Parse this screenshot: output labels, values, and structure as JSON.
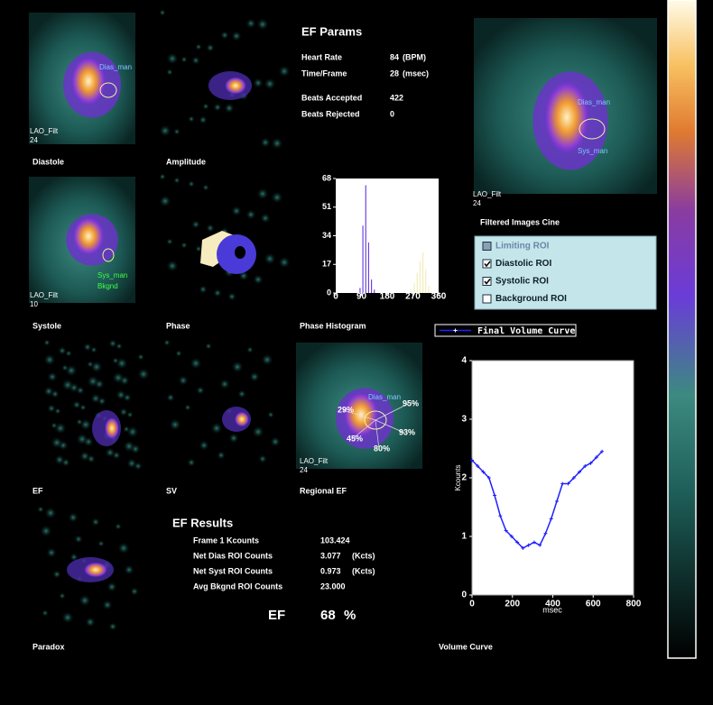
{
  "images": {
    "diastole": {
      "caption": "Diastole",
      "view": "LAO_Filt",
      "frame": "24",
      "roi_labels": [
        "Dias_man"
      ]
    },
    "amplitude": {
      "caption": "Amplitude"
    },
    "systole": {
      "caption": "Systole",
      "view": "LAO_Filt",
      "frame": "10",
      "roi_labels": [
        "Sys_man",
        "Bkgnd"
      ]
    },
    "phase": {
      "caption": "Phase"
    },
    "cine": {
      "caption": "Filtered Images Cine",
      "view": "LAO_Filt",
      "frame": "24",
      "roi_labels": [
        "Dias_man",
        "Sys_man"
      ]
    },
    "ef": {
      "caption": "EF"
    },
    "sv": {
      "caption": "SV"
    },
    "regional_ef": {
      "caption": "Regional EF",
      "view": "LAO_Filt",
      "frame": "24",
      "roi_labels": [
        "Dias_man"
      ],
      "segments": [
        "29%",
        "95%",
        "93%",
        "45%",
        "80%"
      ]
    },
    "paradox": {
      "caption": "Paradox"
    }
  },
  "ef_params": {
    "title": "EF Params",
    "rows": [
      {
        "label": "Heart Rate",
        "value": "84",
        "unit": "(BPM)"
      },
      {
        "label": "Time/Frame",
        "value": "28",
        "unit": "(msec)"
      },
      {
        "label": "Beats Accepted",
        "value": "422"
      },
      {
        "label": "Beats Rejected",
        "value": "0"
      }
    ]
  },
  "roi_panel": {
    "items": [
      {
        "label": "Limiting ROI",
        "checked": false,
        "enabled": false
      },
      {
        "label": "Diastolic ROI",
        "checked": true,
        "enabled": true
      },
      {
        "label": "Systolic ROI",
        "checked": true,
        "enabled": true
      },
      {
        "label": "Background ROI",
        "checked": false,
        "enabled": true
      }
    ]
  },
  "ef_results": {
    "title": "EF Results",
    "rows": [
      {
        "label": "Frame 1 Kcounts",
        "value": "103.424"
      },
      {
        "label": "Net Dias ROI Counts",
        "value": "3.077",
        "unit": "(Kcts)"
      },
      {
        "label": "Net Syst ROI Counts",
        "value": "0.973",
        "unit": "(Kcts)"
      },
      {
        "label": "Avg Bkgnd ROI Counts",
        "value": "23.000"
      }
    ],
    "ef_label": "EF",
    "ef_value": "68",
    "ef_unit": "%"
  },
  "phase_histogram": {
    "type": "histogram",
    "caption": "Phase Histogram",
    "bins": [
      0,
      10,
      20,
      30,
      40,
      50,
      60,
      70,
      80,
      90,
      100,
      110,
      120,
      130,
      140,
      150,
      160,
      170,
      180,
      190,
      200,
      210,
      220,
      230,
      240,
      250,
      260,
      270,
      280,
      290,
      300,
      310,
      320,
      330,
      340,
      350,
      360
    ],
    "series": [
      {
        "color": "#6a40e0",
        "counts": [
          0,
          0,
          0,
          0,
          0,
          0,
          0,
          0,
          3,
          40,
          64,
          30,
          8,
          2,
          0,
          0,
          0,
          0,
          0,
          0,
          0,
          0,
          0,
          0,
          0,
          0,
          0,
          0,
          0,
          0,
          0,
          0,
          0,
          0,
          0,
          0
        ]
      },
      {
        "color": "#f4ecb8",
        "counts": [
          0,
          0,
          0,
          0,
          0,
          0,
          0,
          0,
          0,
          0,
          0,
          0,
          0,
          0,
          0,
          0,
          0,
          0,
          0,
          0,
          0,
          0,
          0,
          0,
          0,
          0,
          2,
          6,
          12,
          19,
          24,
          14,
          4,
          0,
          0,
          0
        ]
      }
    ],
    "xlim": [
      0,
      360
    ],
    "xticks": [
      0,
      90,
      180,
      270,
      360
    ],
    "ylim": [
      0,
      68
    ],
    "yticks": [
      0,
      17,
      34,
      51,
      68
    ]
  },
  "volume_curve": {
    "type": "line",
    "caption": "Volume Curve",
    "xlabel": "msec",
    "ylabel": "Kcounts",
    "x": [
      0,
      28,
      56,
      84,
      112,
      140,
      168,
      196,
      224,
      252,
      280,
      308,
      336,
      364,
      392,
      420,
      448,
      476,
      504,
      532,
      560,
      588,
      616,
      644
    ],
    "series": [
      {
        "name": "Final Volume Curve",
        "color": "#2020ff",
        "values": [
          2.3,
          2.2,
          2.1,
          2.0,
          1.7,
          1.35,
          1.1,
          1.0,
          0.9,
          0.8,
          0.85,
          0.9,
          0.85,
          1.05,
          1.3,
          1.6,
          1.9,
          1.9,
          2.0,
          2.1,
          2.2,
          2.25,
          2.35,
          2.45
        ]
      }
    ],
    "xlim": [
      0,
      800
    ],
    "xticks": [
      0,
      200,
      400,
      600,
      800
    ],
    "ylim": [
      0,
      4
    ],
    "yticks": [
      0,
      1,
      2,
      3,
      4
    ]
  }
}
